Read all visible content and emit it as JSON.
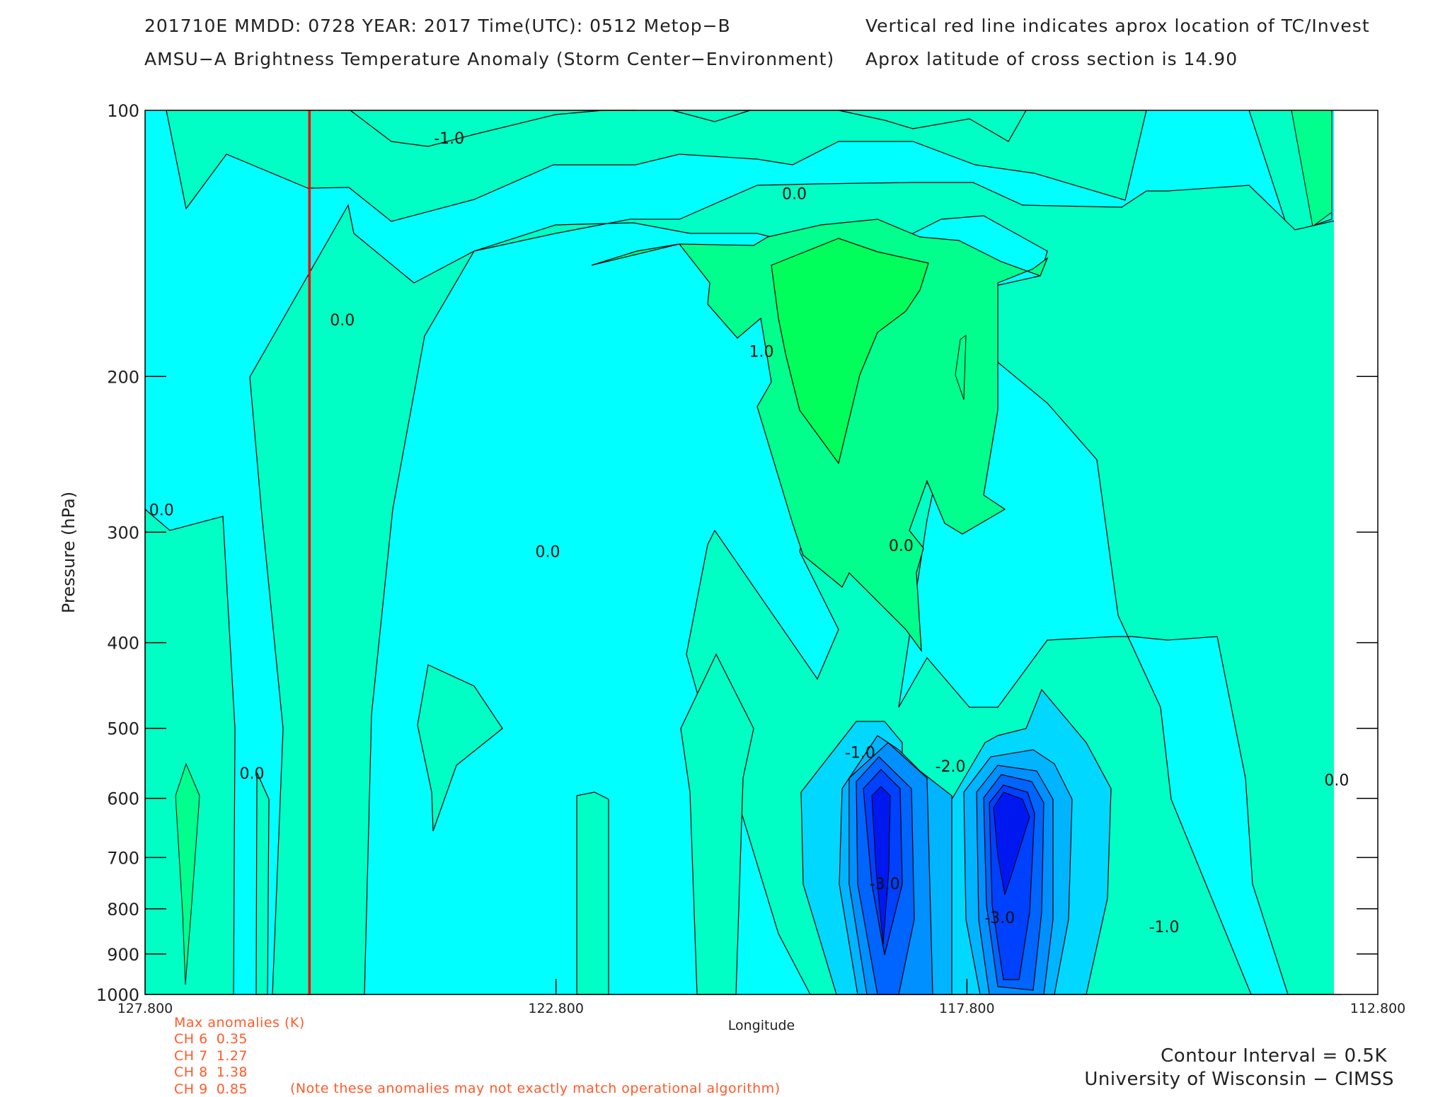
{
  "header": {
    "line1_left": "201710E  MMDD: 0728 YEAR: 2017 Time(UTC): 0512 Metop−B",
    "line2_left": "AMSU−A Brightness Temperature Anomaly (Storm Center−Environment)",
    "line1_right": "Vertical red line indicates aprox location of TC/Invest",
    "line2_right": "Aprox latitude of cross section is 14.90"
  },
  "chart_data": {
    "type": "contour",
    "xlabel": "Longitude",
    "ylabel": "Pressure (hPa)",
    "xlim": [
      127.8,
      112.8
    ],
    "ylim": [
      1000,
      100
    ],
    "y_scale": "log",
    "x_ticks": [
      "127.800",
      "122.800",
      "117.800",
      "112.800"
    ],
    "x_tick_values": [
      127.8,
      122.8,
      117.8,
      112.8
    ],
    "y_ticks": [
      "100",
      "200",
      "300",
      "400",
      "500",
      "600",
      "700",
      "800",
      "900",
      "1000"
    ],
    "y_tick_values": [
      100,
      200,
      300,
      400,
      500,
      600,
      700,
      800,
      900,
      1000
    ],
    "tc_longitude": 125.8,
    "contour_interval": 0.5,
    "contour_labels": [
      {
        "text": "-1.0",
        "lon": 124.1,
        "p": 109
      },
      {
        "text": "0.0",
        "lon": 119.9,
        "p": 126
      },
      {
        "text": "0.0",
        "lon": 125.4,
        "p": 175
      },
      {
        "text": "1.0",
        "lon": 120.3,
        "p": 190
      },
      {
        "text": "0.0",
        "lon": 127.6,
        "p": 287
      },
      {
        "text": "0.0",
        "lon": 122.9,
        "p": 320
      },
      {
        "text": "0.0",
        "lon": 118.6,
        "p": 315
      },
      {
        "text": "0.0",
        "lon": 126.5,
        "p": 570
      },
      {
        "text": "-1.0",
        "lon": 119.1,
        "p": 540
      },
      {
        "text": "-2.0",
        "lon": 118.0,
        "p": 560
      },
      {
        "text": "-3.0",
        "lon": 118.8,
        "p": 760
      },
      {
        "text": "-3.0",
        "lon": 117.4,
        "p": 830
      },
      {
        "text": "-1.0",
        "lon": 115.4,
        "p": 850
      },
      {
        "text": "0.0",
        "lon": 113.3,
        "p": 580
      }
    ],
    "colors": {
      "cyan": "#00ffff",
      "teal": "#00ffc4",
      "green": "#00ff8c",
      "brightgreen": "#00ff5a",
      "neg1": "#00d8ff",
      "neg2": "#00b4ff",
      "neg3": "#0090ff",
      "neg4": "#0064ff",
      "neg5": "#0040ff",
      "neg6": "#0018f0",
      "redline": "#ff0000"
    }
  },
  "anomalies": {
    "title": "Max anomalies (K)",
    "rows": [
      {
        "label": "CH 6",
        "value": "0.35"
      },
      {
        "label": "CH 7",
        "value": "1.27"
      },
      {
        "label": "CH 8",
        "value": "1.38"
      },
      {
        "label": "CH 9",
        "value": "0.85"
      }
    ],
    "note": "(Note these anomalies may not exactly match operational algorithm)"
  },
  "footer": {
    "contour_interval": "Contour Interval = 0.5K",
    "credit": "University of Wisconsin − CIMSS"
  }
}
